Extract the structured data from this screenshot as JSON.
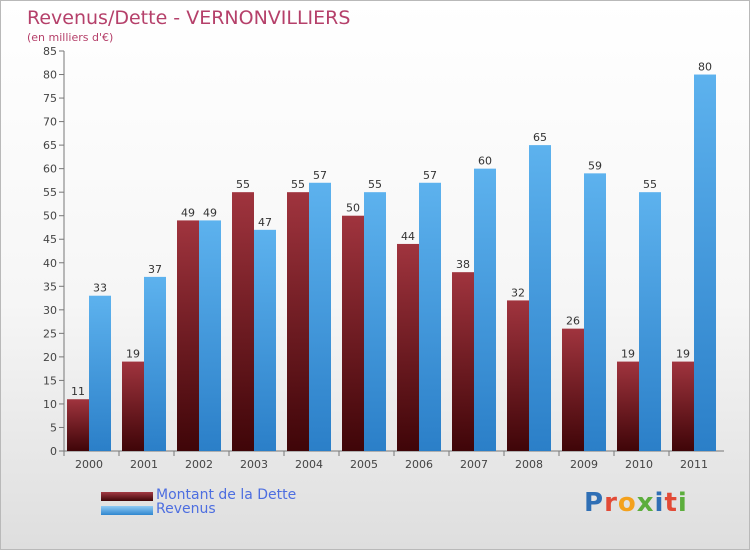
{
  "chart_data": {
    "type": "bar",
    "title": "Revenus/Dette - VERNONVILLIERS",
    "subtitle": "(en milliers d'€)",
    "categories": [
      "2000",
      "2001",
      "2002",
      "2003",
      "2004",
      "2005",
      "2006",
      "2007",
      "2008",
      "2009",
      "2010",
      "2011"
    ],
    "series": [
      {
        "name": "Montant de la Dette",
        "color": "#7a1a22",
        "values": [
          11,
          19,
          49,
          55,
          55,
          50,
          44,
          38,
          32,
          26,
          19,
          19
        ]
      },
      {
        "name": "Revenus",
        "color": "#4aa3e6",
        "values": [
          33,
          37,
          49,
          47,
          57,
          55,
          57,
          60,
          65,
          59,
          55,
          80
        ]
      }
    ],
    "ylim": [
      0,
      85
    ],
    "ytick_step": 5,
    "grid": false,
    "legend_position": "bottom-left"
  },
  "logo": {
    "letters": [
      {
        "ch": "P",
        "color": "#2f6fb5"
      },
      {
        "ch": "r",
        "color": "#e24a36"
      },
      {
        "ch": "o",
        "color": "#f4a11c"
      },
      {
        "ch": "x",
        "color": "#5cae3c"
      },
      {
        "ch": "i",
        "color": "#2f6fb5"
      },
      {
        "ch": "t",
        "color": "#e24a36"
      },
      {
        "ch": "i",
        "color": "#5cae3c"
      }
    ]
  }
}
